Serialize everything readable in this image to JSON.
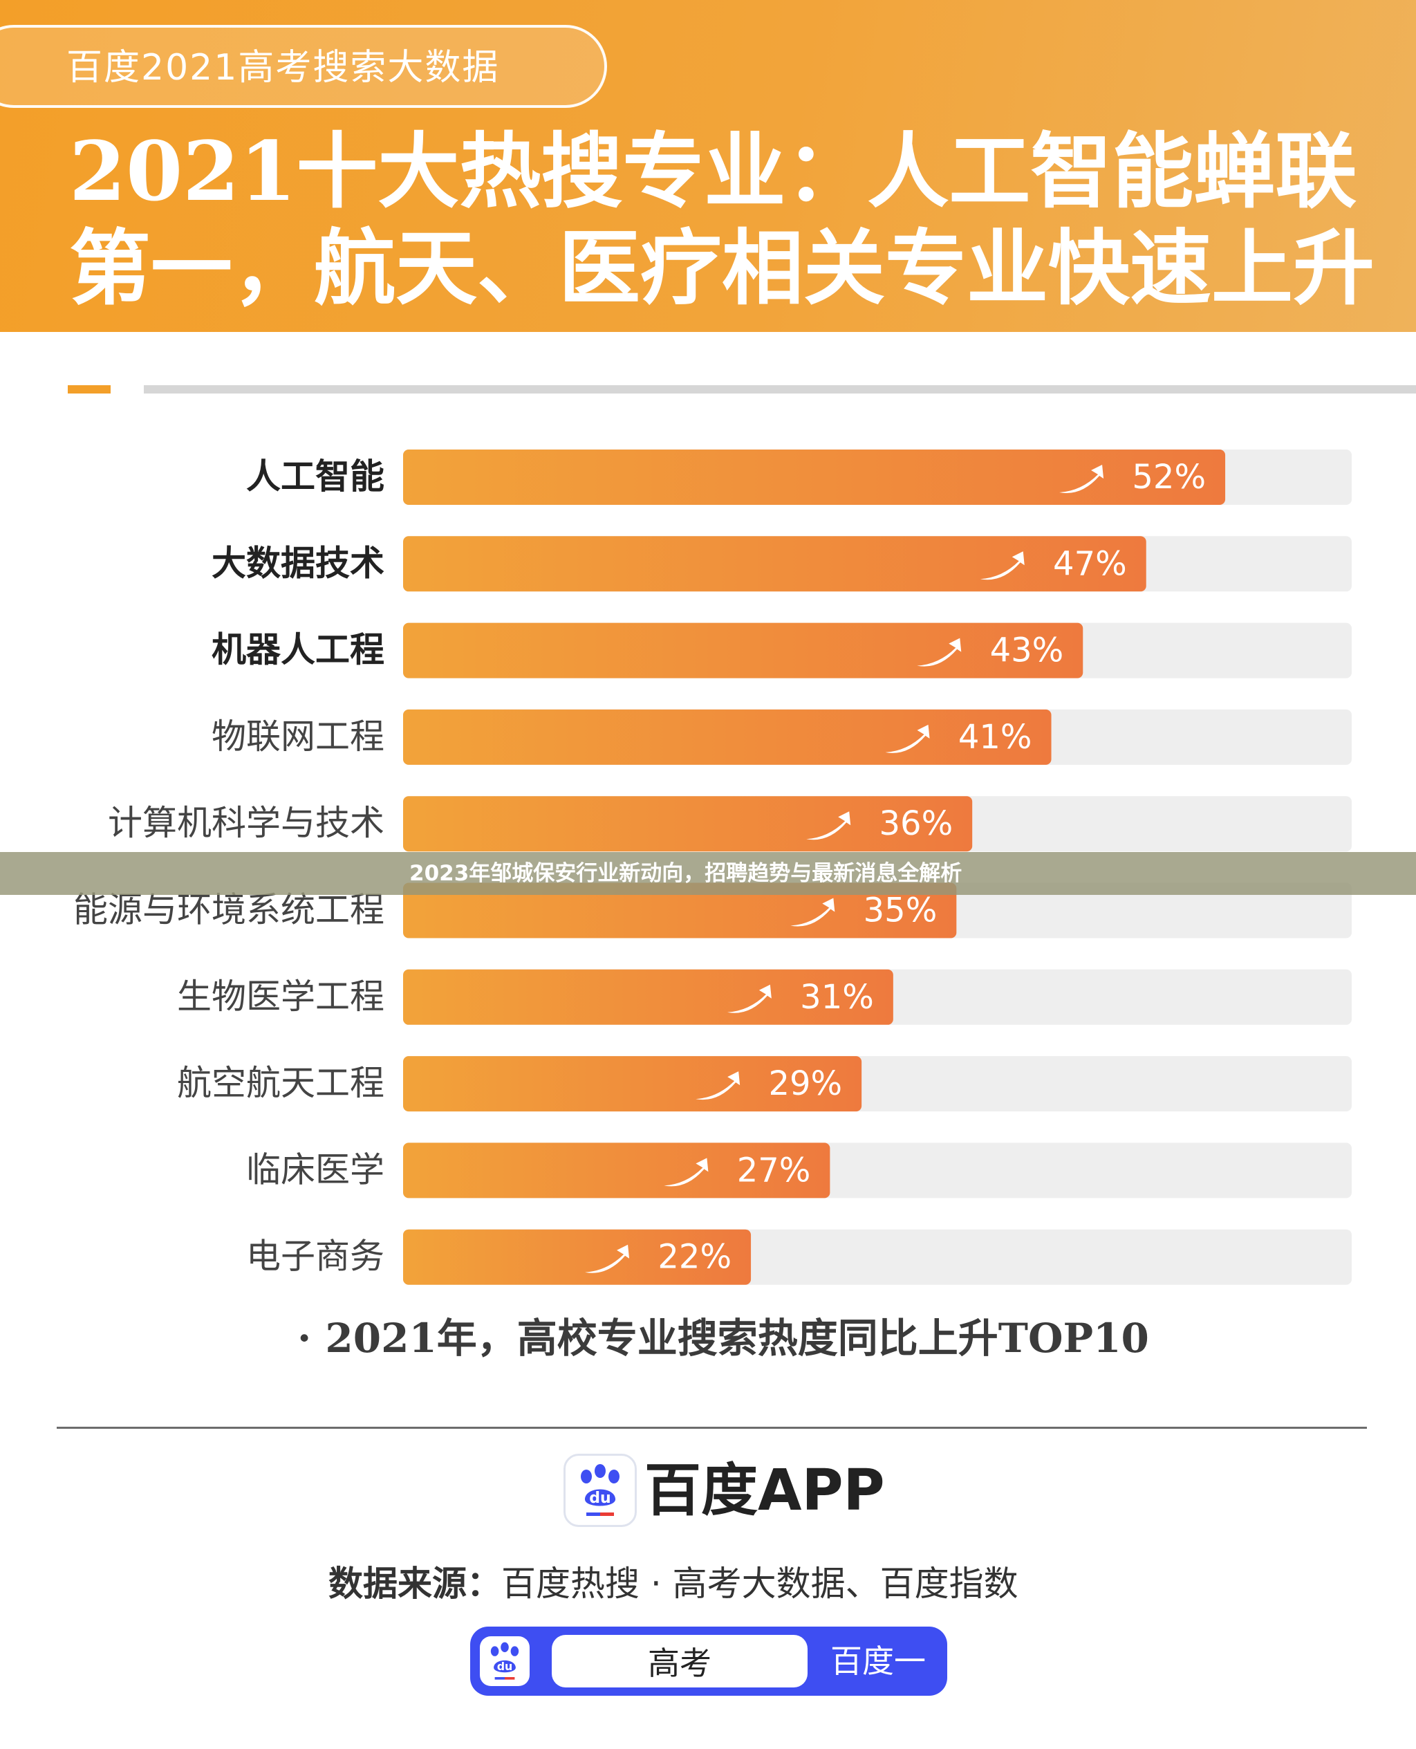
{
  "header": {
    "badge_text": "百度2021高考搜索大数据",
    "headline_line1": "2021十大热搜专业：人工智能蝉联",
    "headline_line2": "第一，航天、医疗相关专业快速上升"
  },
  "chart_data": {
    "type": "bar",
    "orientation": "horizontal",
    "categories": [
      "人工智能",
      "大数据技术",
      "机器人工程",
      "物联网工程",
      "计算机科学与技术",
      "能源与环境系统工程",
      "生物医学工程",
      "航空航天工程",
      "临床医学",
      "电子商务"
    ],
    "values": [
      52,
      47,
      43,
      41,
      36,
      35,
      31,
      29,
      27,
      22
    ],
    "value_labels": [
      "52%",
      "47%",
      "43%",
      "41%",
      "36%",
      "35%",
      "31%",
      "29%",
      "27%",
      "22%"
    ],
    "unit": "%",
    "xlim": [
      0,
      60
    ],
    "bold_categories": [
      "人工智能",
      "大数据技术",
      "机器人工程"
    ],
    "bar_color_start": "#f2a33a",
    "bar_color_end": "#ee7a3e",
    "track_color": "#eeeeee"
  },
  "footnote": "· 2021年，高校专业搜索热度同比上升TOP10",
  "footer": {
    "app_name": "百度APP",
    "source_label": "数据来源：",
    "source_text": "百度热搜 · 高考大数据、百度指数",
    "search_value": "高考",
    "search_button": "百度一下"
  },
  "banner": {
    "text": "2023年邹城保安行业新动向，招聘趋势与最新消息全解析"
  },
  "colors": {
    "header_orange": "#f39f29",
    "brand_blue": "#3e4ef2",
    "banner_bg": "#96967a"
  },
  "icons": {
    "app_logo": "baidu-paw-icon",
    "trend": "trend-up-arrow-icon"
  }
}
